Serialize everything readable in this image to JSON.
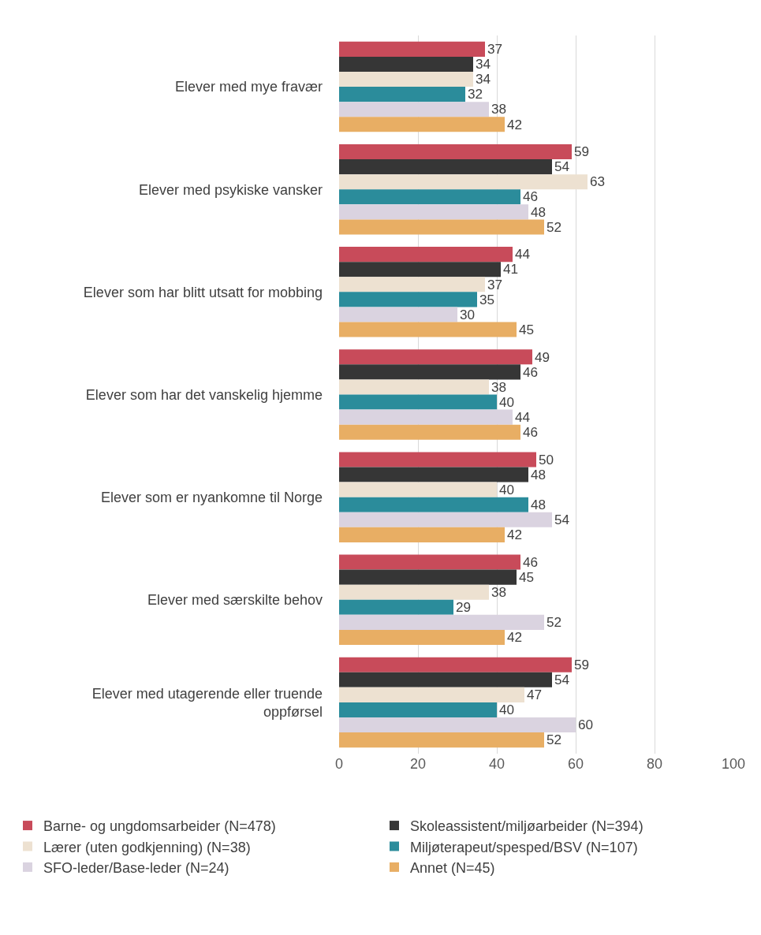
{
  "chart_data": {
    "type": "bar",
    "orientation": "horizontal",
    "categories": [
      "Elever med mye fravær",
      "Elever med psykiske vansker",
      "Elever som har blitt utsatt for mobbing",
      "Elever som har det vanskelig hjemme",
      "Elever som er nyankomne til Norge",
      "Elever med særskilte behov",
      "Elever med utagerende eller truende oppførsel"
    ],
    "series": [
      {
        "name": "Barne- og ungdomsarbeider (N=478)",
        "color": "#c84b5a",
        "values": [
          37,
          59,
          44,
          49,
          50,
          46,
          59
        ]
      },
      {
        "name": "Skoleassistent/miljøarbeider (N=394)",
        "color": "#363636",
        "values": [
          34,
          54,
          41,
          46,
          48,
          45,
          54
        ]
      },
      {
        "name": "Lærer (uten godkjenning) (N=38)",
        "color": "#ede1d1",
        "values": [
          34,
          63,
          37,
          38,
          40,
          38,
          47
        ]
      },
      {
        "name": "Miljøterapeut/spesped/BSV (N=107)",
        "color": "#2b8c9b",
        "values": [
          32,
          46,
          35,
          40,
          48,
          29,
          40
        ]
      },
      {
        "name": "SFO-leder/Base-leder (N=24)",
        "color": "#dad3e0",
        "values": [
          38,
          48,
          30,
          44,
          54,
          52,
          60
        ]
      },
      {
        "name": "Annet (N=45)",
        "color": "#e8ae64",
        "values": [
          42,
          52,
          45,
          46,
          42,
          42,
          52
        ]
      }
    ],
    "xlim": [
      0,
      100
    ],
    "xticks": [
      0,
      20,
      40,
      60,
      80,
      100
    ],
    "grid": "x",
    "legend": "bottom",
    "data_labels": true
  }
}
